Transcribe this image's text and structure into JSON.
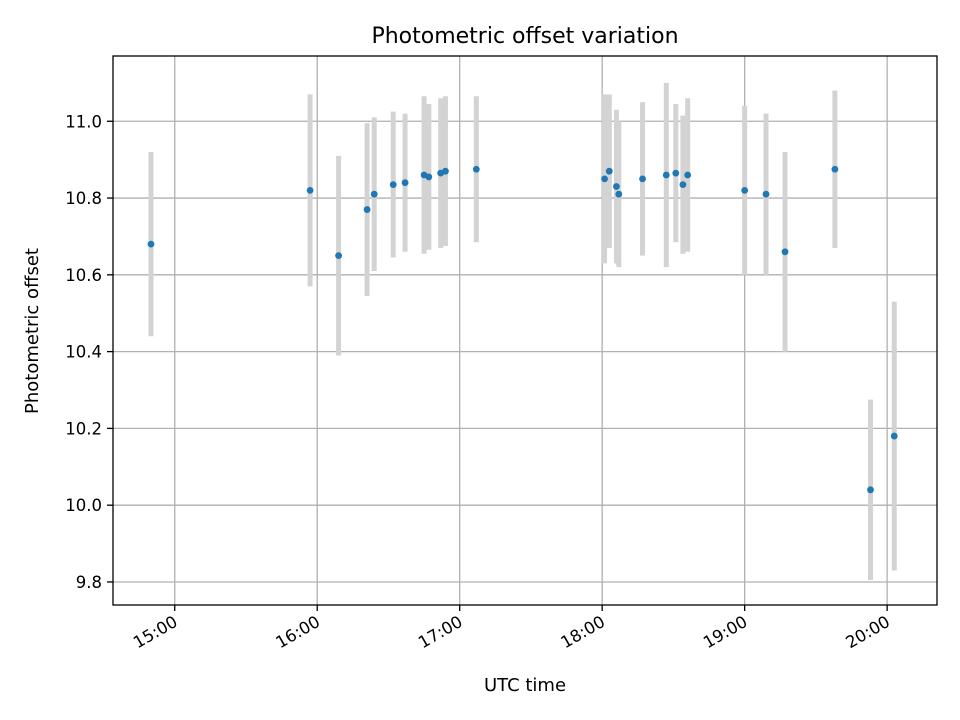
{
  "chart_data": {
    "type": "scatter",
    "title": "Photometric offset variation",
    "xlabel": "UTC time",
    "ylabel": "Photometric offset",
    "x_is_time": true,
    "xlim": [
      "14:34",
      "20:21"
    ],
    "ylim": [
      9.74,
      11.17
    ],
    "x_ticks": [
      "15:00",
      "16:00",
      "17:00",
      "18:00",
      "19:00",
      "20:00"
    ],
    "y_ticks": [
      "9.8",
      "10.0",
      "10.2",
      "10.4",
      "10.6",
      "10.8",
      "11.0"
    ],
    "grid": true,
    "colors": {
      "marker": "#1f77b4",
      "error_bar": "#d3d3d3",
      "grid": "#b0b0b0"
    },
    "series": [
      {
        "points": [
          {
            "x": "14:50",
            "y": 10.68,
            "err": 0.24
          },
          {
            "x": "15:57",
            "y": 10.82,
            "err": 0.25
          },
          {
            "x": "16:09",
            "y": 10.65,
            "err": 0.26
          },
          {
            "x": "16:21",
            "y": 10.77,
            "err": 0.225
          },
          {
            "x": "16:24",
            "y": 10.81,
            "err": 0.2
          },
          {
            "x": "16:32",
            "y": 10.835,
            "err": 0.19
          },
          {
            "x": "16:37",
            "y": 10.84,
            "err": 0.18
          },
          {
            "x": "16:45",
            "y": 10.86,
            "err": 0.205
          },
          {
            "x": "16:47",
            "y": 10.855,
            "err": 0.19
          },
          {
            "x": "16:52",
            "y": 10.865,
            "err": 0.195
          },
          {
            "x": "16:54",
            "y": 10.87,
            "err": 0.195
          },
          {
            "x": "17:07",
            "y": 10.875,
            "err": 0.19
          },
          {
            "x": "18:01",
            "y": 10.85,
            "err": 0.22
          },
          {
            "x": "18:03",
            "y": 10.87,
            "err": 0.2
          },
          {
            "x": "18:06",
            "y": 10.83,
            "err": 0.2
          },
          {
            "x": "18:07",
            "y": 10.81,
            "err": 0.19
          },
          {
            "x": "18:17",
            "y": 10.85,
            "err": 0.2
          },
          {
            "x": "18:27",
            "y": 10.86,
            "err": 0.24
          },
          {
            "x": "18:31",
            "y": 10.865,
            "err": 0.18
          },
          {
            "x": "18:34",
            "y": 10.835,
            "err": 0.18
          },
          {
            "x": "18:36",
            "y": 10.86,
            "err": 0.2
          },
          {
            "x": "19:00",
            "y": 10.82,
            "err": 0.22
          },
          {
            "x": "19:09",
            "y": 10.81,
            "err": 0.21
          },
          {
            "x": "19:17",
            "y": 10.66,
            "err": 0.26
          },
          {
            "x": "19:38",
            "y": 10.875,
            "err": 0.205
          },
          {
            "x": "19:53",
            "y": 10.04,
            "err": 0.235
          },
          {
            "x": "20:03",
            "y": 10.18,
            "err": 0.35
          }
        ]
      }
    ]
  }
}
